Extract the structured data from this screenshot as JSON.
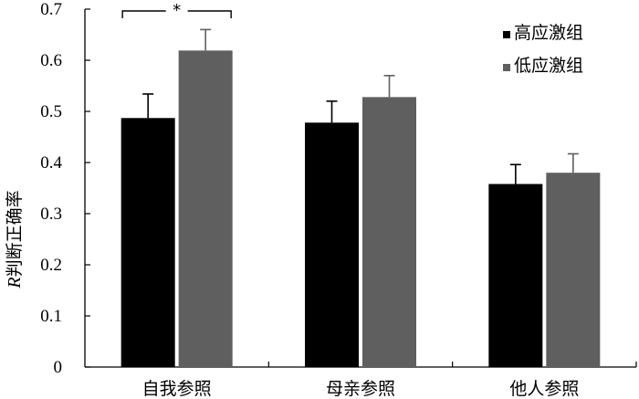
{
  "chart_data": {
    "type": "bar",
    "ylabel_italic": "R",
    "ylabel_rest": "判断正确率",
    "ylim": [
      0,
      0.7
    ],
    "yticks": [
      "0",
      "0.1",
      "0.2",
      "0.3",
      "0.4",
      "0.5",
      "0.6",
      "0.7"
    ],
    "grid": false,
    "legend_position": "top-right",
    "categories": [
      "自我参照",
      "母亲参照",
      "他人参照"
    ],
    "series": [
      {
        "name": "高应激组",
        "color": "#000000",
        "values": [
          0.487,
          0.478,
          0.358
        ],
        "errors": [
          0.047,
          0.042,
          0.038
        ]
      },
      {
        "name": "低应激组",
        "color": "#5f5f5f",
        "values": [
          0.619,
          0.528,
          0.38
        ],
        "errors": [
          0.041,
          0.042,
          0.037
        ]
      }
    ],
    "annotations": [
      {
        "text": "*",
        "category": "自我参照"
      }
    ]
  }
}
